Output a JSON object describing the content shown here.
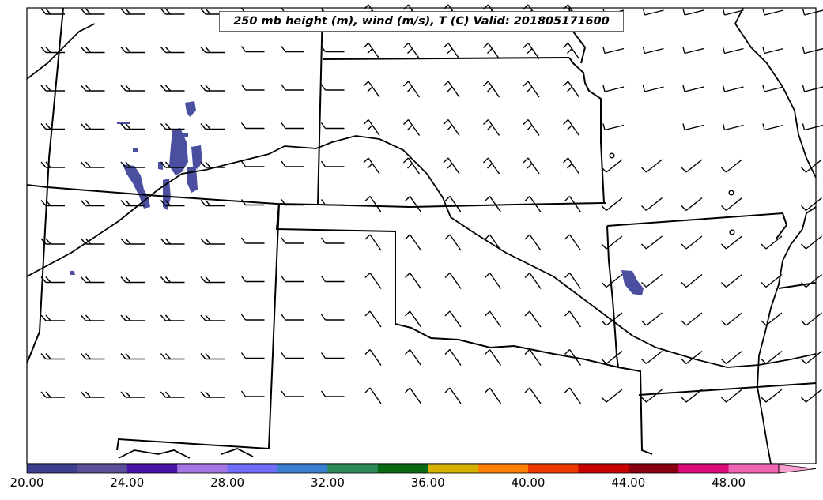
{
  "title": "250 mb height (m), wind (m/s), T (C) Valid: 201805171600",
  "colorbar": {
    "labels": [
      "20.00",
      "24.00",
      "28.00",
      "32.00",
      "36.00",
      "40.00",
      "44.00",
      "48.00"
    ],
    "colors": [
      "#3f3f8f",
      "#5a4f9a",
      "#4a12a8",
      "#a275e3",
      "#6e6ef8",
      "#3a7fcf",
      "#2e8b57",
      "#0a6a14",
      "#d4b000",
      "#ff7f00",
      "#ee3a00",
      "#c80000",
      "#8b0010",
      "#dd0a7a",
      "#f064b4",
      "#f8a0d0"
    ],
    "extend": "max"
  },
  "shading": {
    "color": "#4a4fa0",
    "meaning": "wind speed >= 20 m/s (color-filled)"
  },
  "map": {
    "projection": "Lambert Conformal",
    "region": "Central US (Colorado, Kansas, Oklahoma, New Mexico, Missouri, Arkansas, Texas panhandle)",
    "barbs": "wind barbs on regular grid, mostly westerly over west half, southwesterly/northwesterly over east",
    "calm_circles": 3
  }
}
